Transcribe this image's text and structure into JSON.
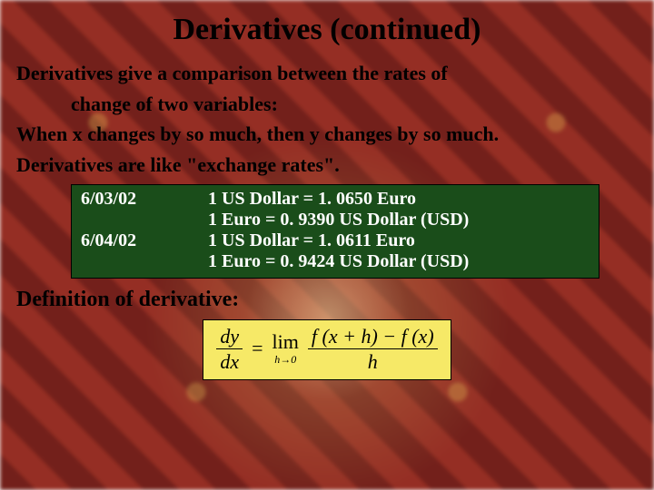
{
  "title": "Derivatives (continued)",
  "body": {
    "line1a": "Derivatives give a comparison between the rates of",
    "line1b": "change of two variables:",
    "line2": "When x changes by so much, then y changes by so much.",
    "line3": "Derivatives are like \"exchange rates\"."
  },
  "table": {
    "background_color": "#1a4d1a",
    "text_color": "#ffffff",
    "rows": [
      {
        "date": "6/03/02",
        "rate1": "1 US Dollar = 1. 0650 Euro",
        "rate2": "1 Euro = 0. 9390 US Dollar (USD)"
      },
      {
        "date": "6/04/02",
        "rate1": "1 US Dollar = 1. 0611 Euro",
        "rate2": "1 Euro = 0. 9424 US Dollar (USD)"
      }
    ]
  },
  "definition_label": "Definition of derivative:",
  "formula": {
    "background_color": "#f6e967",
    "lhs_num": "dy",
    "lhs_den": "dx",
    "equals": "=",
    "lim_top": "lim",
    "lim_bot": "h→0",
    "rhs_num": "f (x + h) − f (x)",
    "rhs_den": "h"
  }
}
